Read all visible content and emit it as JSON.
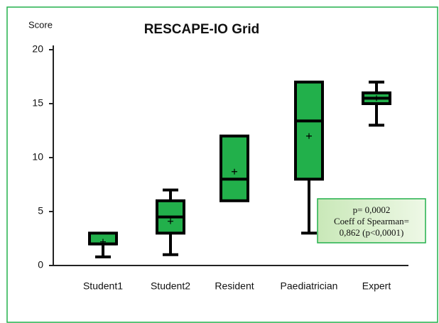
{
  "chart_data": {
    "type": "box",
    "title": "RESCAPE-IO Grid",
    "ylabel": "Score",
    "categories": [
      "Student1",
      "Student2",
      "Resident",
      "Paediatrician",
      "Expert"
    ],
    "min": [
      0.8,
      1,
      6,
      3,
      13
    ],
    "q1": [
      2,
      3,
      6,
      8,
      15
    ],
    "median": [
      2,
      4.5,
      8,
      13.4,
      15.5
    ],
    "q3": [
      3,
      6,
      12,
      17,
      16
    ],
    "max": [
      3,
      7,
      12,
      17,
      17
    ],
    "mean": [
      2.2,
      4.1,
      8.7,
      12,
      15.5
    ],
    "color": "#22b04b",
    "ylim": [
      0,
      20
    ],
    "yticks": [
      0,
      5,
      10,
      15,
      20
    ],
    "annotation": [
      "p= 0,0002",
      "Coeff of Spearman=",
      "0,862 (p<0,0001)"
    ]
  }
}
